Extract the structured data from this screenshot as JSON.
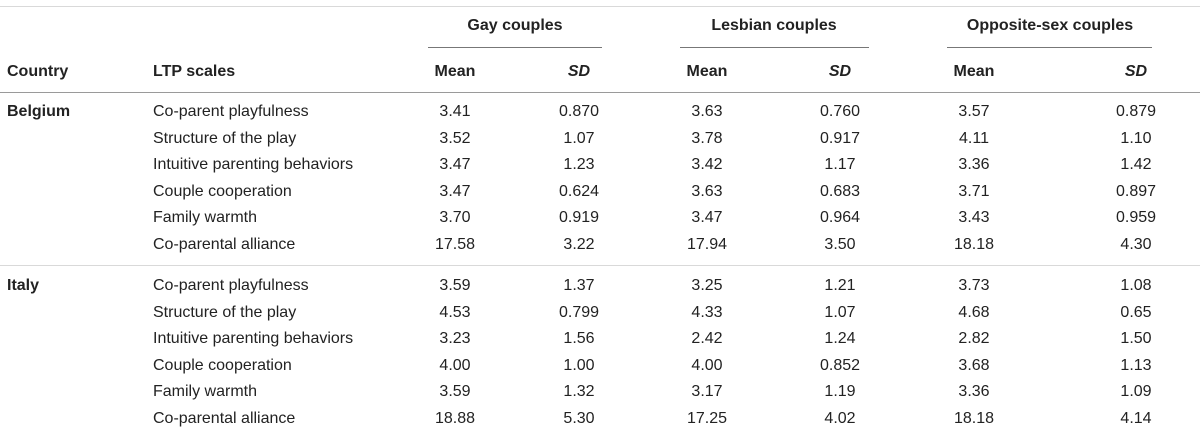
{
  "header": {
    "groups": [
      "Gay couples",
      "Lesbian couples",
      "Opposite-sex couples"
    ],
    "country": "Country",
    "scales": "LTP scales",
    "mean": "Mean",
    "sd": "SD"
  },
  "sections": [
    {
      "country": "Belgium",
      "rows": [
        {
          "scale": "Co-parent playfulness",
          "values": [
            "3.41",
            "0.870",
            "3.63",
            "0.760",
            "3.57",
            "0.879"
          ]
        },
        {
          "scale": "Structure of the play",
          "values": [
            "3.52",
            "1.07",
            "3.78",
            "0.917",
            "4.11",
            "1.10"
          ]
        },
        {
          "scale": "Intuitive parenting behaviors",
          "values": [
            "3.47",
            "1.23",
            "3.42",
            "1.17",
            "3.36",
            "1.42"
          ]
        },
        {
          "scale": "Couple cooperation",
          "values": [
            "3.47",
            "0.624",
            "3.63",
            "0.683",
            "3.71",
            "0.897"
          ]
        },
        {
          "scale": "Family warmth",
          "values": [
            "3.70",
            "0.919",
            "3.47",
            "0.964",
            "3.43",
            "0.959"
          ]
        },
        {
          "scale": "Co-parental alliance",
          "values": [
            "17.58",
            "3.22",
            "17.94",
            "3.50",
            "18.18",
            "4.30"
          ]
        }
      ]
    },
    {
      "country": "Italy",
      "rows": [
        {
          "scale": "Co-parent playfulness",
          "values": [
            "3.59",
            "1.37",
            "3.25",
            "1.21",
            "3.73",
            "1.08"
          ]
        },
        {
          "scale": "Structure of the play",
          "values": [
            "4.53",
            "0.799",
            "4.33",
            "1.07",
            "4.68",
            "0.65"
          ]
        },
        {
          "scale": "Intuitive parenting behaviors",
          "values": [
            "3.23",
            "1.56",
            "2.42",
            "1.24",
            "2.82",
            "1.50"
          ]
        },
        {
          "scale": "Couple cooperation",
          "values": [
            "4.00",
            "1.00",
            "4.00",
            "0.852",
            "3.68",
            "1.13"
          ]
        },
        {
          "scale": "Family warmth",
          "values": [
            "3.59",
            "1.32",
            "3.17",
            "1.19",
            "3.36",
            "1.09"
          ]
        },
        {
          "scale": "Co-parental alliance",
          "values": [
            "18.88",
            "5.30",
            "17.25",
            "4.02",
            "18.18",
            "4.14"
          ]
        }
      ]
    }
  ]
}
